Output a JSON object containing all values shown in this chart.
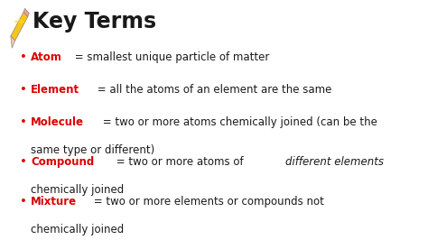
{
  "background_color": "#ffffff",
  "title": "Key Terms",
  "title_fontsize": 17,
  "title_color": "#1a1a1a",
  "red_color": "#dd0000",
  "black_color": "#1a1a1a",
  "bullet_char": "•",
  "items": [
    {
      "term": "Atom",
      "segments": [
        {
          "text": " = smallest unique particle of matter",
          "style": "normal"
        }
      ],
      "continuation": null
    },
    {
      "term": "Element",
      "segments": [
        {
          "text": " = all the atoms of an element are the same",
          "style": "normal"
        }
      ],
      "continuation": null
    },
    {
      "term": "Molecule",
      "segments": [
        {
          "text": " = two or more atoms chemically joined (can be the",
          "style": "normal"
        }
      ],
      "continuation": "same type or different)"
    },
    {
      "term": "Compound",
      "segments": [
        {
          "text": " = two or more atoms of ",
          "style": "normal"
        },
        {
          "text": "different elements",
          "style": "italic"
        }
      ],
      "continuation": "chemically joined"
    },
    {
      "term": "Mixture",
      "segments": [
        {
          "text": " = two or more elements or compounds not",
          "style": "normal"
        }
      ],
      "continuation": "chemically joined"
    }
  ],
  "item_fontsize": 8.5,
  "figsize": [
    4.74,
    2.66
  ],
  "dpi": 100
}
